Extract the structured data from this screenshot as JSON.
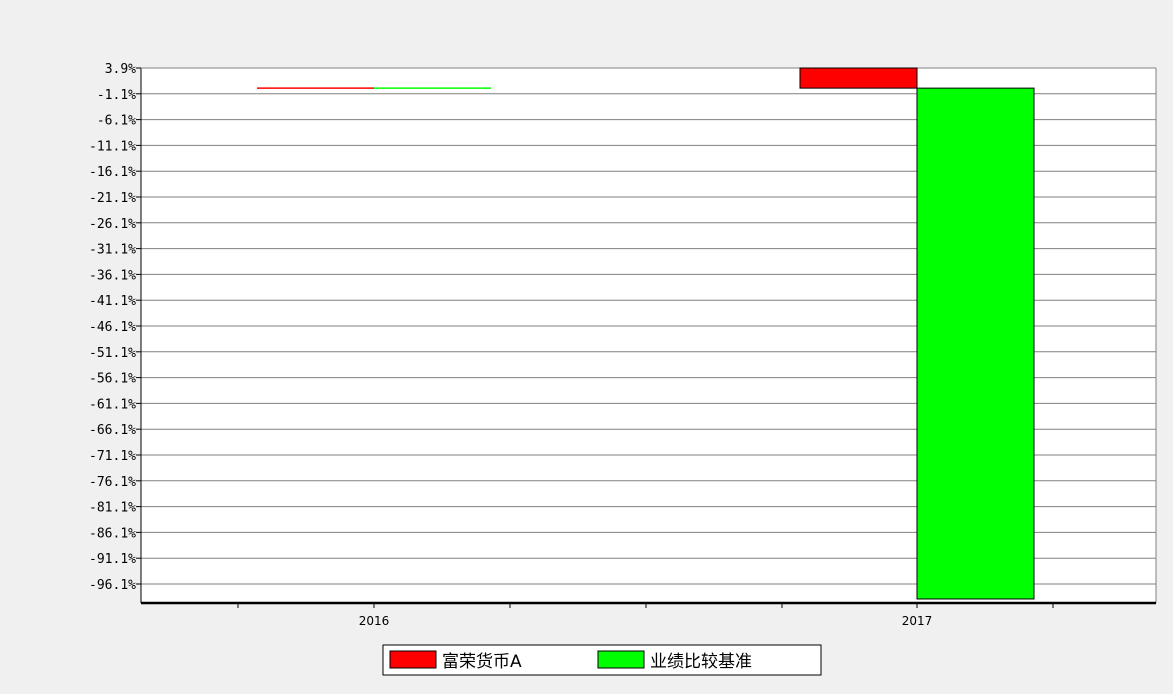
{
  "chart_data": {
    "type": "bar",
    "categories": [
      "2016",
      "2017"
    ],
    "series": [
      {
        "name": "富荣货币A",
        "color": "#ff0000",
        "values": [
          0.0,
          3.9
        ]
      },
      {
        "name": "业绩比较基准",
        "color": "#00ff00",
        "values": [
          0.0,
          -99.0
        ]
      }
    ],
    "yticks": [
      "3.9%",
      "-1.1%",
      "-6.1%",
      "-11.1%",
      "-16.1%",
      "-21.1%",
      "-26.1%",
      "-31.1%",
      "-36.1%",
      "-41.1%",
      "-46.1%",
      "-51.1%",
      "-56.1%",
      "-61.1%",
      "-66.1%",
      "-71.1%",
      "-76.1%",
      "-81.1%",
      "-86.1%",
      "-91.1%",
      "-96.1%"
    ],
    "ytick_values": [
      3.9,
      -1.1,
      -6.1,
      -11.1,
      -16.1,
      -21.1,
      -26.1,
      -31.1,
      -36.1,
      -41.1,
      -46.1,
      -51.1,
      -56.1,
      -61.1,
      -66.1,
      -71.1,
      -76.1,
      -81.1,
      -86.1,
      -91.1,
      -96.1
    ],
    "ylim": [
      -99.0,
      3.9
    ],
    "grid": true,
    "legend_position": "bottom",
    "colors": {
      "background": "#f0f0f0",
      "plot_background": "#ffffff",
      "grid": "#808080"
    }
  }
}
